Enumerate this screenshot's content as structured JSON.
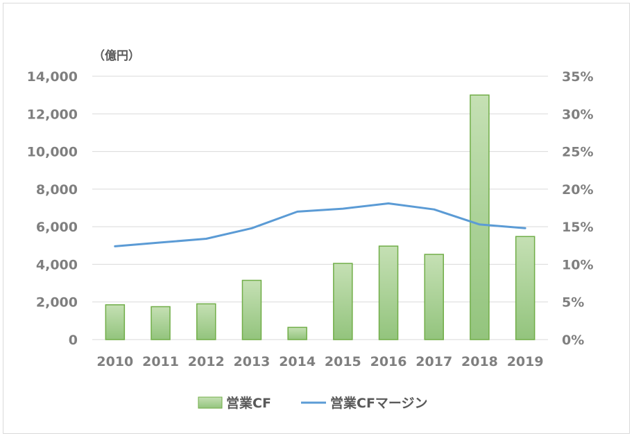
{
  "chart_data": {
    "type": "bar",
    "unit_label": "（億円）",
    "categories": [
      "2010",
      "2011",
      "2012",
      "2013",
      "2014",
      "2015",
      "2016",
      "2017",
      "2018",
      "2019"
    ],
    "series": [
      {
        "name": "営業CF",
        "type": "bar",
        "axis": "left",
        "values": [
          1850,
          1750,
          1900,
          3150,
          650,
          4050,
          4970,
          4530,
          13000,
          5480
        ]
      },
      {
        "name": "営業CFマージン",
        "type": "line",
        "axis": "right",
        "values": [
          12.4,
          12.9,
          13.4,
          14.8,
          17.0,
          17.4,
          18.1,
          17.3,
          15.3,
          14.8
        ]
      }
    ],
    "y_left": {
      "min": 0,
      "max": 14000,
      "ticks": [
        "0",
        "2,000",
        "4,000",
        "6,000",
        "8,000",
        "10,000",
        "12,000",
        "14,000"
      ]
    },
    "y_right": {
      "min": 0,
      "max": 35,
      "ticks": [
        "0%",
        "5%",
        "10%",
        "15%",
        "20%",
        "25%",
        "30%",
        "35%"
      ]
    },
    "grid": true,
    "legend_position": "bottom",
    "colors": {
      "bar_fill_top": "#b7d7a8",
      "bar_fill_bottom": "#93c47d",
      "bar_stroke": "#70ad47",
      "line": "#5b9bd5",
      "grid": "#d9d9d9"
    }
  }
}
